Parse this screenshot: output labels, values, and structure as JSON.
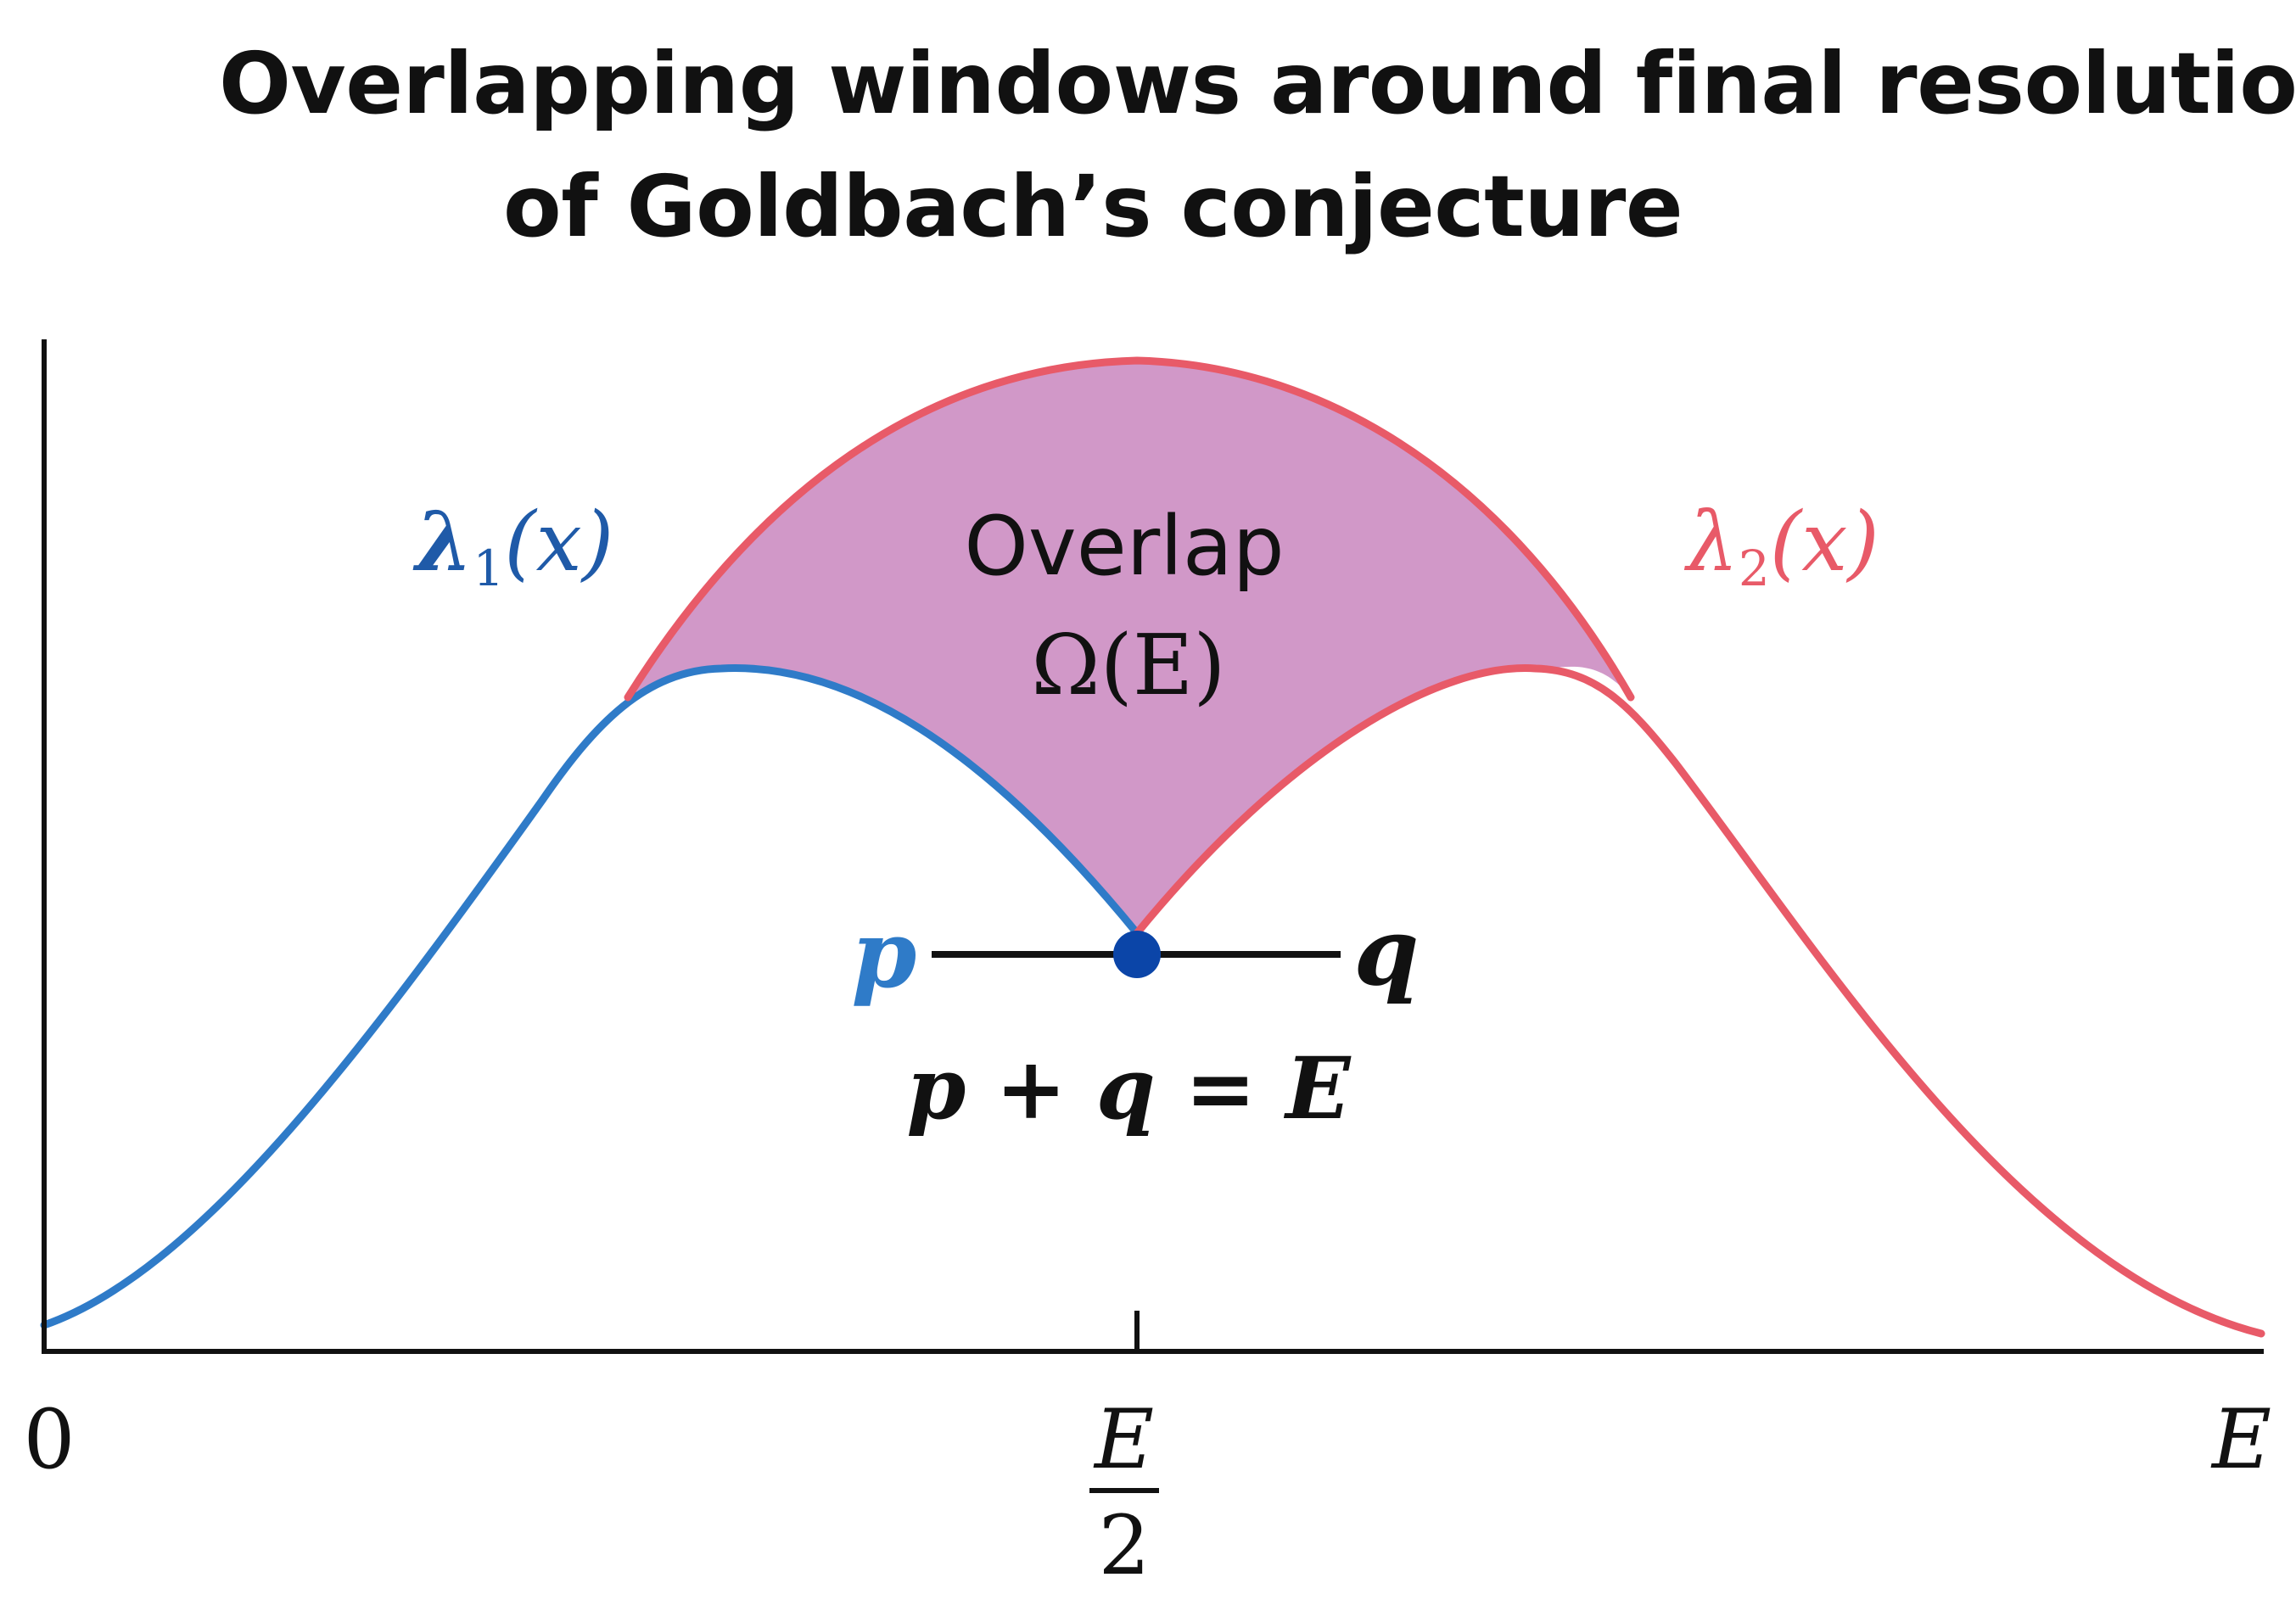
{
  "title": {
    "line1": "Overlapping windows around final resolution",
    "line2": "of Goldbach’s conjecture"
  },
  "colors": {
    "lambda1": "#2f7bc8",
    "lambda2": "#e85a68",
    "overlap_fill": "#d198c8",
    "axis": "#111111",
    "point": "#0b45a8"
  },
  "curves": {
    "lambda1": {
      "symbol": "λ",
      "subscript": "1",
      "arg": "(x)"
    },
    "lambda2": {
      "symbol": "λ",
      "subscript": "2",
      "arg": "(x)"
    }
  },
  "overlap": {
    "label": "Overlap",
    "symbol": "Ω(E)"
  },
  "pair": {
    "p": "p",
    "q": "q",
    "equation": "p + q = E"
  },
  "axis": {
    "origin": "0",
    "mid_numerator": "E",
    "mid_denominator": "2",
    "end": "E"
  }
}
